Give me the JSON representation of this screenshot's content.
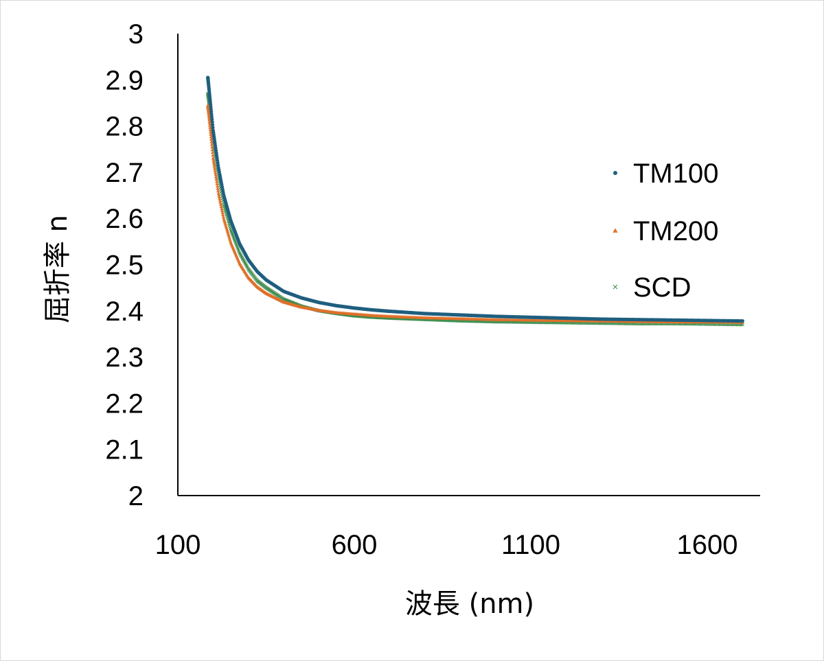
{
  "chart_data": {
    "type": "scatter",
    "xlabel": "波長 (nm)",
    "ylabel": "屈折率 n",
    "xlim": [
      100,
      1700
    ],
    "ylim": [
      2,
      3
    ],
    "x_ticks": [
      "100",
      "600",
      "1100",
      "1600"
    ],
    "y_ticks": [
      "3",
      "2.9",
      "2.8",
      "2.7",
      "2.6",
      "2.5",
      "2.4",
      "2.3",
      "2.2",
      "2.1",
      "2"
    ],
    "x_tick_values": [
      100,
      600,
      1100,
      1600
    ],
    "y_tick_values": [
      3,
      2.9,
      2.8,
      2.7,
      2.6,
      2.5,
      2.4,
      2.3,
      2.2,
      2.1,
      2
    ],
    "grid": false,
    "legend_position": "right",
    "x": [
      185,
      200,
      215,
      230,
      250,
      275,
      300,
      325,
      350,
      400,
      450,
      500,
      550,
      600,
      650,
      700,
      800,
      900,
      1000,
      1100,
      1200,
      1300,
      1400,
      1500,
      1600,
      1700
    ],
    "series": [
      {
        "name": "TM100",
        "marker": "circle",
        "color": "#1f5f7f",
        "values": [
          2.905,
          2.79,
          2.71,
          2.65,
          2.595,
          2.545,
          2.51,
          2.485,
          2.467,
          2.442,
          2.428,
          2.418,
          2.411,
          2.406,
          2.402,
          2.399,
          2.394,
          2.391,
          2.388,
          2.386,
          2.384,
          2.382,
          2.381,
          2.38,
          2.379,
          2.378
        ]
      },
      {
        "name": "TM200",
        "marker": "triangle",
        "color": "#e0702a",
        "values": [
          2.845,
          2.73,
          2.655,
          2.6,
          2.548,
          2.503,
          2.472,
          2.452,
          2.438,
          2.419,
          2.408,
          2.401,
          2.396,
          2.393,
          2.39,
          2.388,
          2.385,
          2.383,
          2.381,
          2.38,
          2.379,
          2.378,
          2.377,
          2.376,
          2.376,
          2.375
        ]
      },
      {
        "name": "SCD",
        "marker": "x",
        "color": "#3a8a4a",
        "values": [
          2.87,
          2.765,
          2.69,
          2.63,
          2.575,
          2.525,
          2.49,
          2.465,
          2.45,
          2.425,
          2.41,
          2.4,
          2.394,
          2.389,
          2.386,
          2.384,
          2.381,
          2.378,
          2.376,
          2.375,
          2.374,
          2.373,
          2.372,
          2.372,
          2.371,
          2.37
        ]
      }
    ]
  }
}
